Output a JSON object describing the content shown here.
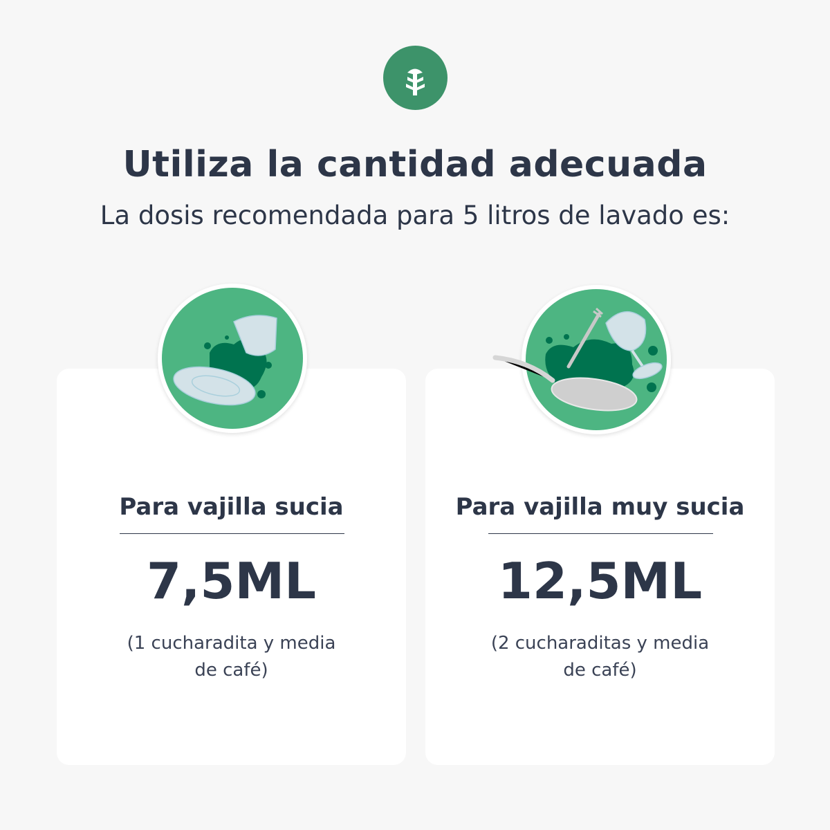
{
  "logo": {
    "icon": "tree-icon",
    "color": "#3d936a"
  },
  "header": {
    "title": "Utiliza la cantidad adecuada",
    "subtitle": "La dosis recomendada para 5 litros de lavado es:"
  },
  "cards": [
    {
      "title": "Para vajilla sucia",
      "value": "7,5ML",
      "desc_line1": "(1 cucharadita y media",
      "desc_line2": "de café)",
      "illustration": "plate-and-glass-icon"
    },
    {
      "title": "Para vajilla muy sucia",
      "value": "12,5ML",
      "desc_line1": "(2 cucharaditas y media",
      "desc_line2": "de café)",
      "illustration": "pan-fork-wineglass-icon"
    }
  ],
  "colors": {
    "text": "#2d3648",
    "badge_green": "#4db582",
    "splash": "#00734f",
    "background": "#f7f7f7"
  }
}
